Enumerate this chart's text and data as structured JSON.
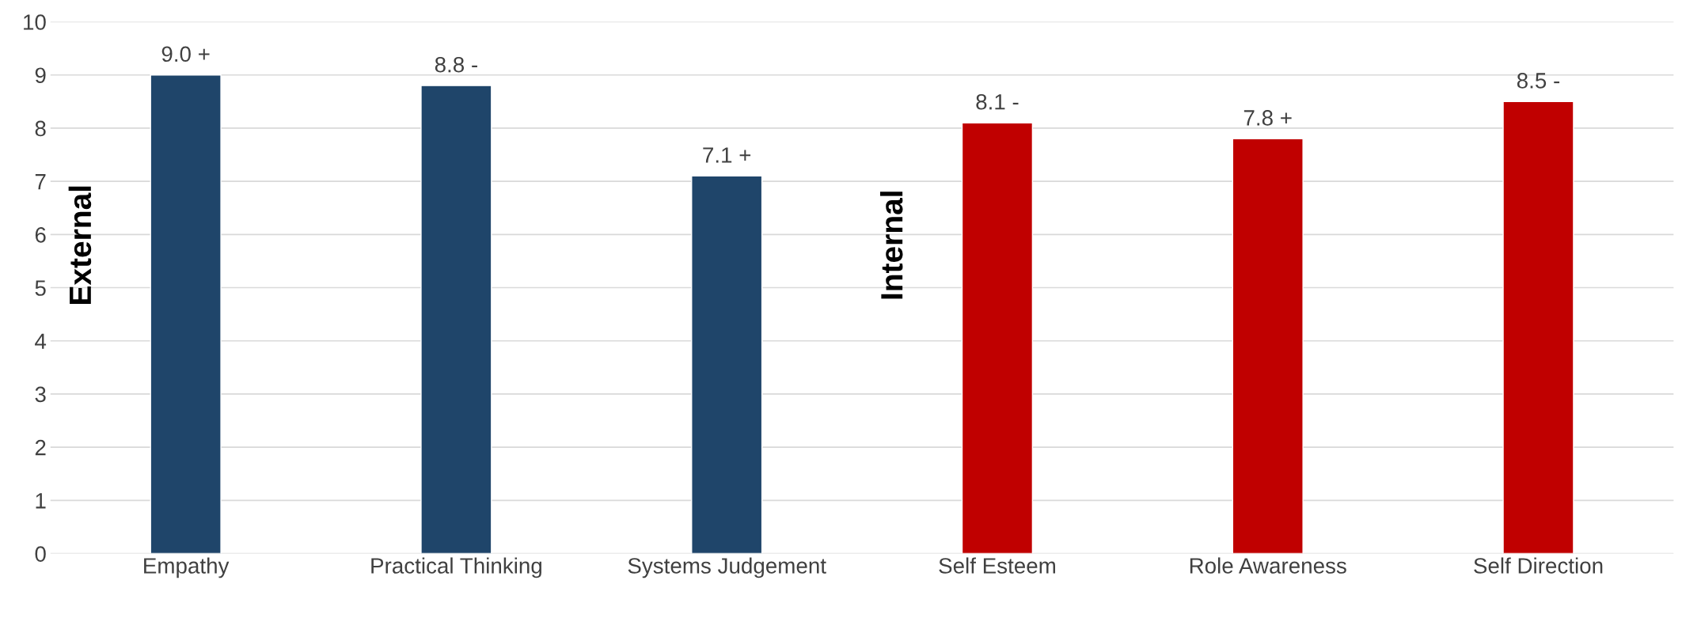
{
  "chart_data": {
    "type": "bar",
    "categories": [
      "Empathy",
      "Practical Thinking",
      "Systems Judgement",
      "Self Esteem",
      "Role Awareness",
      "Self Direction"
    ],
    "values": [
      9.0,
      8.8,
      7.1,
      8.1,
      7.8,
      8.5
    ],
    "colors": [
      "#1f456a",
      "#1f456a",
      "#1f456a",
      "#c00000",
      "#c00000",
      "#c00000"
    ],
    "value_labels": [
      "9.0 +",
      "8.8 -",
      "7.1 +",
      "8.1 -",
      "7.8 +",
      "8.5 -"
    ],
    "annotations": [
      "External",
      "Internal"
    ],
    "ylim": [
      0,
      10
    ],
    "yticks": [
      0,
      1,
      2,
      3,
      4,
      5,
      6,
      7,
      8,
      9,
      10
    ],
    "grid": "y"
  }
}
